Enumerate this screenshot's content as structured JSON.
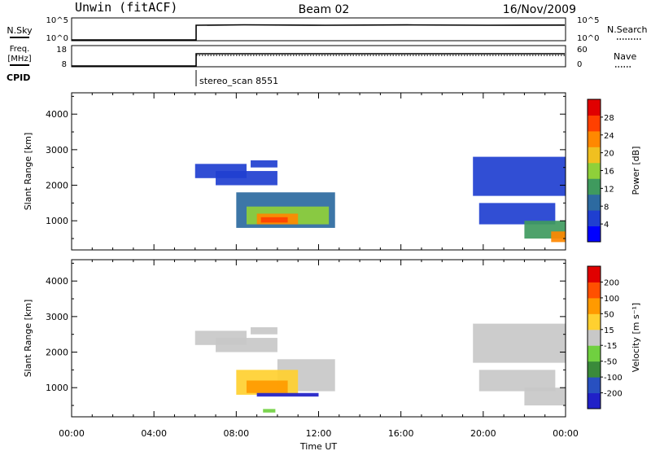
{
  "header": {
    "station": "Unwin (fitACF)",
    "beam": "Beam 02",
    "date": "16/Nov/2009"
  },
  "summary_panels": {
    "nsky": {
      "label": "N.Sky",
      "ticks": [
        "10^5",
        "10^0"
      ]
    },
    "nsearch": {
      "label": "N.Search",
      "ticks": [
        "10^5",
        "10^0"
      ]
    },
    "freq": {
      "label_top": "Freq.",
      "label_bottom": "[MHz]",
      "ticks": [
        "18",
        "8"
      ]
    },
    "nave": {
      "label": "Nave",
      "ticks": [
        "60",
        "0"
      ]
    },
    "cpid": {
      "label": "CPID",
      "value": "stereo_scan 8551"
    }
  },
  "colors": {
    "power": [
      "#0000ff",
      "#1f3fd0",
      "#2d6aa0",
      "#3f9a5e",
      "#8fd03a",
      "#f0c020",
      "#ff8800",
      "#ff4000",
      "#e00000"
    ],
    "velocity": [
      "#2020c8",
      "#2850c0",
      "#3a8a3a",
      "#70d040",
      "#c8c8c8",
      "#ffd030",
      "#ff9a00",
      "#ff5000",
      "#e00000"
    ]
  },
  "chart_data": [
    {
      "type": "heatmap",
      "name": "power",
      "ylabel": "Slant Range [km]",
      "yticks": [
        1000,
        2000,
        3000,
        4000
      ],
      "ylim": [
        180,
        4600
      ],
      "xlim": [
        0,
        24
      ],
      "colorbar_label": "Power [dB]",
      "colorbar_ticks": [
        "28",
        "24",
        "20",
        "16",
        "12",
        "8",
        "4"
      ],
      "regions": [
        {
          "x0": 6.0,
          "x1": 8.5,
          "y0": 2200,
          "y1": 2600,
          "level": 1
        },
        {
          "x0": 7.0,
          "x1": 10.0,
          "y0": 2000,
          "y1": 2400,
          "level": 1
        },
        {
          "x0": 8.7,
          "x1": 10.0,
          "y0": 2500,
          "y1": 2700,
          "level": 1
        },
        {
          "x0": 8.0,
          "x1": 12.8,
          "y0": 800,
          "y1": 1800,
          "level": 2
        },
        {
          "x0": 8.5,
          "x1": 12.5,
          "y0": 900,
          "y1": 1400,
          "level": 4
        },
        {
          "x0": 9.0,
          "x1": 11.0,
          "y0": 900,
          "y1": 1200,
          "level": 6
        },
        {
          "x0": 9.2,
          "x1": 10.5,
          "y0": 950,
          "y1": 1100,
          "level": 7
        },
        {
          "x0": 19.5,
          "x1": 24.0,
          "y0": 1700,
          "y1": 2800,
          "level": 1
        },
        {
          "x0": 19.8,
          "x1": 23.5,
          "y0": 900,
          "y1": 1500,
          "level": 1
        },
        {
          "x0": 22.0,
          "x1": 24.0,
          "y0": 500,
          "y1": 1000,
          "level": 3
        },
        {
          "x0": 23.3,
          "x1": 24.0,
          "y0": 400,
          "y1": 700,
          "level": 6
        }
      ]
    },
    {
      "type": "heatmap",
      "name": "velocity",
      "ylabel": "Slant Range [km]",
      "yticks": [
        1000,
        2000,
        3000,
        4000
      ],
      "ylim": [
        180,
        4600
      ],
      "xlim": [
        0,
        24
      ],
      "xlabel": "Time UT",
      "xticks": [
        "00:00",
        "04:00",
        "08:00",
        "12:00",
        "16:00",
        "20:00",
        "00:00"
      ],
      "colorbar_label": "Velocity [m s⁻¹]",
      "colorbar_ticks": [
        "200",
        "100",
        "50",
        "15",
        "-15",
        "-50",
        "-100",
        "-200"
      ],
      "regions": [
        {
          "x0": 6.0,
          "x1": 8.5,
          "y0": 2200,
          "y1": 2600,
          "level": 4
        },
        {
          "x0": 7.0,
          "x1": 10.0,
          "y0": 2000,
          "y1": 2400,
          "level": 4
        },
        {
          "x0": 8.7,
          "x1": 10.0,
          "y0": 2500,
          "y1": 2700,
          "level": 4
        },
        {
          "x0": 10.0,
          "x1": 12.8,
          "y0": 900,
          "y1": 1800,
          "level": 4
        },
        {
          "x0": 8.0,
          "x1": 11.0,
          "y0": 800,
          "y1": 1500,
          "level": 5
        },
        {
          "x0": 8.5,
          "x1": 10.5,
          "y0": 850,
          "y1": 1200,
          "level": 6
        },
        {
          "x0": 9.0,
          "x1": 12.0,
          "y0": 750,
          "y1": 850,
          "level": 0
        },
        {
          "x0": 9.3,
          "x1": 9.9,
          "y0": 300,
          "y1": 400,
          "level": 3
        },
        {
          "x0": 19.5,
          "x1": 24.0,
          "y0": 1700,
          "y1": 2800,
          "level": 4
        },
        {
          "x0": 19.8,
          "x1": 23.5,
          "y0": 900,
          "y1": 1500,
          "level": 4
        },
        {
          "x0": 22.0,
          "x1": 24.0,
          "y0": 500,
          "y1": 1000,
          "level": 4
        }
      ]
    }
  ]
}
